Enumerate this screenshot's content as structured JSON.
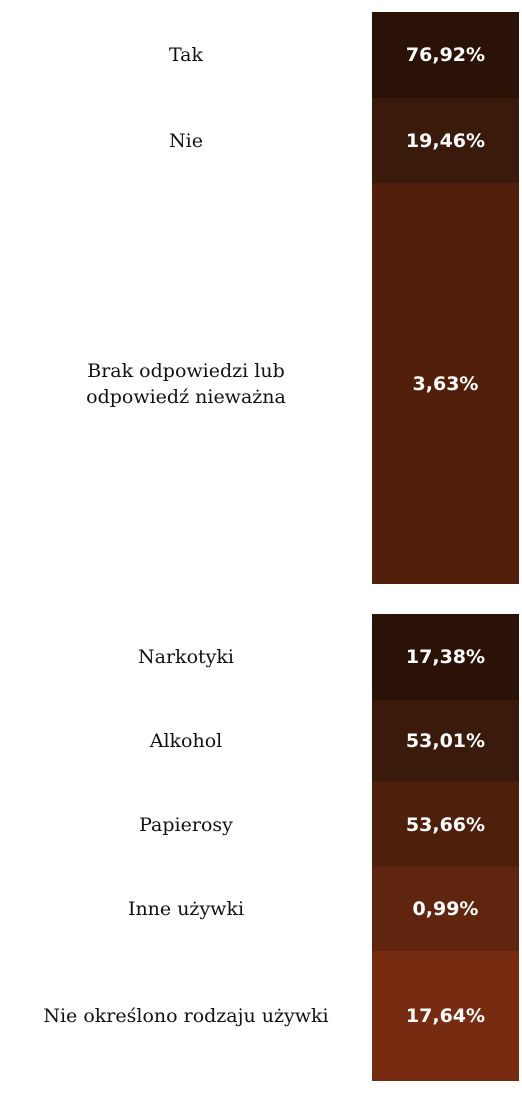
{
  "chart_data": [
    {
      "type": "table",
      "categories": [
        "Tak",
        "Nie",
        "Brak odpowiedzi lub\nodpowiedź nieważna"
      ],
      "values": [
        "76,92%",
        "19,46%",
        "3,63%"
      ],
      "colors": [
        "#2a1206",
        "#3a1a0a",
        "#52200a"
      ]
    },
    {
      "type": "table",
      "categories": [
        "Narkotyki",
        "Alkohol",
        "Papierosy",
        "Inne używki",
        "Nie określono rodzaju używki"
      ],
      "values": [
        "17,38%",
        "53,01%",
        "53,66%",
        "0,99%",
        "17,64%"
      ],
      "colors": [
        "#2a1206",
        "#3a1a0a",
        "#4e200c",
        "#60250e",
        "#772c12"
      ]
    }
  ]
}
